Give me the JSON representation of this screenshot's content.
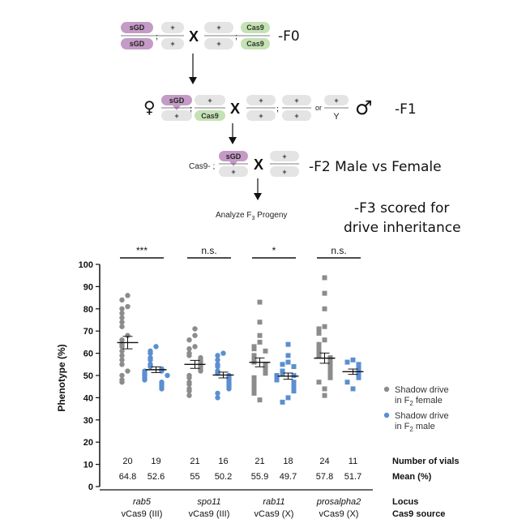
{
  "diagram": {
    "f0": {
      "label": "-F0",
      "female_chr": [
        "sGD",
        "+",
        "sGD",
        "+"
      ],
      "male_chr": [
        "+",
        "Cas9",
        "+",
        "Cas9"
      ]
    },
    "f1": {
      "label": "-F1",
      "female_chr": [
        "sGD",
        "+",
        "+",
        "Cas9"
      ],
      "male_chr": [
        "+",
        "+",
        "+",
        "+"
      ],
      "y_chr": [
        "+",
        "Y"
      ],
      "or": "or",
      "female_symbol": "♀",
      "male_symbol": "♂"
    },
    "f2": {
      "label": "-F2 Male vs Female",
      "prefix": "Cas9- ;",
      "chr": [
        "sGD",
        "+",
        "+",
        "+"
      ]
    },
    "f3": {
      "analyze": "Analyze F",
      "analyze_sub": "3",
      "analyze_end": " Progeny",
      "label_line1": "-F3 scored for",
      "label_line2": "drive inheritance"
    },
    "cross_symbol": "X",
    "semicolon": ";",
    "colors": {
      "sgd": "#c39bc6",
      "cas9": "#c4e2b4",
      "plus": "#e4e4e4"
    }
  },
  "chart_data": {
    "type": "scatter",
    "ylabel": "Phenotype (%)",
    "ylim": [
      0,
      100
    ],
    "yticks": [
      0,
      10,
      20,
      30,
      40,
      50,
      60,
      70,
      80,
      90,
      100
    ],
    "legend": {
      "position": "right",
      "entries": [
        {
          "line1": "Shadow drive",
          "line2_pre": "in F",
          "line2_sub": "2",
          "line2_post": " female",
          "color": "#8c8c8c"
        },
        {
          "line1": "Shadow drive",
          "line2_pre": "in F",
          "line2_sub": "2",
          "line2_post": " male",
          "color": "#5b8fd0"
        }
      ]
    },
    "colors": {
      "female": "#8c8c8c",
      "male": "#5b8fd0"
    },
    "groups": [
      {
        "locus": "rab5",
        "cas9_source": "vCas9 (III)",
        "marker": "circle",
        "significance": "***",
        "female": {
          "n": "20",
          "mean_label": "64.8",
          "mean": 64.8,
          "sem": 2.8,
          "values": [
            86,
            84,
            81,
            80,
            78,
            76,
            74,
            72,
            68,
            66,
            64,
            63,
            61,
            59,
            57,
            55,
            52,
            50,
            48,
            47
          ]
        },
        "male": {
          "n": "19",
          "mean_label": "52.6",
          "mean": 52.6,
          "sem": 1.3,
          "values": [
            63,
            61,
            60,
            58,
            57,
            55,
            54,
            53,
            52,
            52,
            51,
            50,
            50,
            49,
            48,
            47,
            46,
            45,
            44
          ]
        }
      },
      {
        "locus": "spo11",
        "cas9_source": "vCas9 (III)",
        "marker": "circle",
        "significance": "n.s.",
        "female": {
          "n": "21",
          "mean_label": "55",
          "mean": 55,
          "sem": 1.8,
          "values": [
            71,
            68,
            66,
            63,
            62,
            60,
            59,
            58,
            57,
            56,
            55,
            54,
            53,
            52,
            50,
            49,
            47,
            46,
            44,
            43,
            41
          ]
        },
        "male": {
          "n": "16",
          "mean_label": "50.2",
          "mean": 50.2,
          "sem": 1.3,
          "values": [
            60,
            59,
            57,
            55,
            54,
            52,
            51,
            50,
            49,
            48,
            47,
            46,
            45,
            44,
            42,
            40
          ]
        }
      },
      {
        "locus": "rab11",
        "cas9_source": "vCas9 (X)",
        "marker": "square",
        "significance": "*",
        "female": {
          "n": "21",
          "mean_label": "55.9",
          "mean": 55.9,
          "sem": 2.0,
          "values": [
            83,
            74,
            68,
            65,
            63,
            62,
            61,
            59,
            57,
            56,
            55,
            54,
            53,
            52,
            51,
            49,
            47,
            46,
            44,
            42,
            39
          ]
        },
        "male": {
          "n": "18",
          "mean_label": "49.7",
          "mean": 49.7,
          "sem": 1.4,
          "values": [
            64,
            59,
            56,
            55,
            54,
            52,
            51,
            50,
            50,
            49,
            48,
            47,
            46,
            45,
            44,
            43,
            40,
            38
          ]
        }
      },
      {
        "locus": "prosalpha2",
        "cas9_source": "vCas9 (X)",
        "marker": "square",
        "significance": "n.s.",
        "female": {
          "n": "24",
          "mean_label": "57.8",
          "mean": 57.8,
          "sem": 2.3,
          "values": [
            94,
            87,
            80,
            72,
            71,
            69,
            66,
            64,
            62,
            60,
            59,
            58,
            57,
            56,
            55,
            54,
            53,
            52,
            51,
            50,
            49,
            47,
            44,
            41
          ]
        },
        "male": {
          "n": "11",
          "mean_label": "51.7",
          "mean": 51.7,
          "sem": 1.2,
          "values": [
            57,
            56,
            55,
            54,
            53,
            52,
            51,
            50,
            49,
            47,
            44
          ]
        }
      }
    ],
    "brackets": [
      {
        "label": "***"
      },
      {
        "label": "n.s."
      },
      {
        "label": "*"
      },
      {
        "label": "n.s."
      }
    ],
    "table": {
      "number_label": "Number of vials",
      "mean_label": "Mean (%)",
      "locus_label": "Locus",
      "cas9_label": "Cas9 source"
    }
  }
}
